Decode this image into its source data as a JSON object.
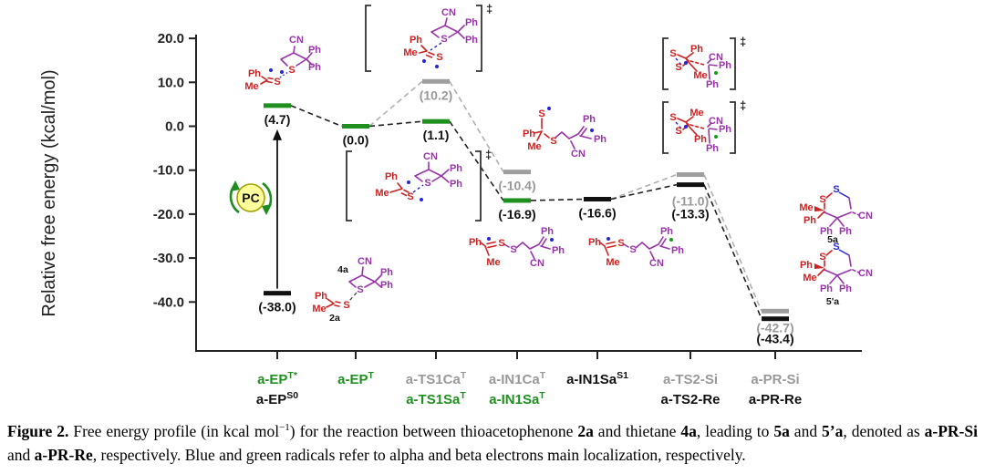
{
  "colors": {
    "green": "#1f8f1f",
    "gray": "#9e9e9e",
    "black": "#111111",
    "gray_text": "#999999",
    "line_gray": "#b0b0b0",
    "line_black": "#222222",
    "purple": "#9933aa",
    "red": "#cc2222",
    "blue": "#2424dd",
    "radical_green": "#0f9f0f",
    "pc_fill": "#ffff9c",
    "pc_ring": "#1e8c1e"
  },
  "chart_data": {
    "type": "energy-profile",
    "ylabel": "Relative free energy (kcal/mol)",
    "yunits": "kcal/mol",
    "ylim": [
      -47,
      22
    ],
    "yticks": [
      "20.0",
      "10.0",
      "0.0",
      "-10.0",
      "-20.0",
      "-30.0",
      "-40.0"
    ],
    "grid": false,
    "stages": [
      {
        "x": 304,
        "row1": {
          "text": "a-EP",
          "sup": "T*",
          "color": "green"
        },
        "row2": {
          "text": "a-EP",
          "sup": "S0",
          "color": "black"
        }
      },
      {
        "x": 390,
        "row1": {
          "text": "a-EP",
          "sup": "T",
          "color": "green"
        }
      },
      {
        "x": 478,
        "row1": {
          "text": "a-TS1Ca",
          "sup": "T",
          "color": "gray_text"
        },
        "row2": {
          "text": "a-TS1Sa",
          "sup": "T",
          "color": "green"
        }
      },
      {
        "x": 567,
        "row1": {
          "text": "a-IN1Ca",
          "sup": "T",
          "color": "gray_text"
        },
        "row2": {
          "text": "a-IN1Sa",
          "sup": "T",
          "color": "green"
        }
      },
      {
        "x": 655,
        "row1": {
          "text": "a-IN1Sa",
          "sup": "S1",
          "color": "black"
        }
      },
      {
        "x": 757,
        "row1": {
          "text": "a-TS2-Si",
          "sup": "",
          "color": "gray_text"
        },
        "row2": {
          "text": "a-TS2-Re",
          "sup": "",
          "color": "black"
        }
      },
      {
        "x": 850,
        "row1": {
          "text": "a-PR-Si",
          "sup": "",
          "color": "gray_text"
        },
        "row2": {
          "text": "a-PR-Re",
          "sup": "",
          "color": "black"
        }
      }
    ],
    "levels": [
      {
        "id": "EPTstar",
        "stage": 0,
        "value": 4.7,
        "color": "green",
        "label": "(4.7)",
        "label_color": "black"
      },
      {
        "id": "EPS0",
        "stage": 0,
        "value": -38.0,
        "color": "black",
        "label": "(-38.0)",
        "label_color": "black"
      },
      {
        "id": "EPT",
        "stage": 1,
        "value": 0.0,
        "color": "green",
        "label": "(0.0)",
        "label_color": "black"
      },
      {
        "id": "TS1Ca",
        "stage": 2,
        "value": 10.2,
        "color": "gray",
        "label": "(10.2)",
        "label_color": "gray_text"
      },
      {
        "id": "TS1Sa",
        "stage": 2,
        "value": 1.1,
        "color": "green",
        "label": "(1.1)",
        "label_color": "black"
      },
      {
        "id": "IN1Ca",
        "stage": 3,
        "value": -10.4,
        "color": "gray",
        "label": "(-10.4)",
        "label_color": "gray_text"
      },
      {
        "id": "IN1Sa",
        "stage": 3,
        "value": -16.9,
        "color": "green",
        "label": "(-16.9)",
        "label_color": "black"
      },
      {
        "id": "IN1SaS1",
        "stage": 4,
        "value": -16.6,
        "color": "black",
        "label": "(-16.6)",
        "label_color": "black"
      },
      {
        "id": "TS2Si",
        "stage": 5,
        "value": -11.0,
        "color": "gray",
        "label": "(-11.0)",
        "label_color": "gray_text",
        "label_dy": 34
      },
      {
        "id": "TS2Re",
        "stage": 5,
        "value": -13.3,
        "color": "black",
        "label": "(-13.3)",
        "label_color": "black",
        "label_dy": 37
      },
      {
        "id": "PRSi",
        "stage": 6,
        "value": -42.7,
        "color": "gray",
        "label": "(-42.7)",
        "label_color": "gray_text",
        "bar_dy": -3
      },
      {
        "id": "PRRe",
        "stage": 6,
        "value": -43.4,
        "color": "black",
        "label": "(-43.4)",
        "label_color": "black",
        "bar_dy": 2,
        "label_dy": 29
      }
    ],
    "connections": [
      [
        "EPTstar",
        "EPT",
        "black"
      ],
      [
        "EPT",
        "TS1Ca",
        "gray"
      ],
      [
        "EPT",
        "TS1Sa",
        "black"
      ],
      [
        "TS1Ca",
        "IN1Ca",
        "gray"
      ],
      [
        "TS1Sa",
        "IN1Sa",
        "black"
      ],
      [
        "IN1Sa",
        "IN1SaS1",
        "black"
      ],
      [
        "IN1SaS1",
        "TS2Si",
        "gray"
      ],
      [
        "IN1SaS1",
        "TS2Re",
        "black"
      ],
      [
        "TS2Si",
        "PRSi",
        "gray"
      ],
      [
        "TS2Re",
        "PRRe",
        "black"
      ]
    ],
    "excitation_arrow": {
      "stage": 0,
      "from": -38.0,
      "to": 4.7
    }
  },
  "pc": {
    "label": "PC"
  },
  "molecules": {
    "ts_symbol": "‡",
    "labels": {
      "ph": "Ph",
      "me": "Me",
      "s": "S",
      "cn": "CN"
    },
    "tags": {
      "m2a": "2a",
      "m4a": "4a",
      "p5a": "5a",
      "p5pa": "5'a"
    }
  },
  "caption": {
    "segments": [
      {
        "t": "Figure 2.",
        "b": 1
      },
      {
        "t": "  Free energy profile (in kcal mol",
        "b": 0
      },
      {
        "t": "−1",
        "sup": 1
      },
      {
        "t": ") for the reaction between thioacetophenone ",
        "b": 0
      },
      {
        "t": "2a",
        "b": 1
      },
      {
        "t": " and thietane ",
        "b": 0
      },
      {
        "t": "4a",
        "b": 1
      },
      {
        "t": ", leading to ",
        "b": 0
      },
      {
        "t": "5a",
        "b": 1
      },
      {
        "t": " and ",
        "b": 0
      },
      {
        "t": "5’a",
        "b": 1
      },
      {
        "t": ", denoted as ",
        "b": 0
      },
      {
        "t": "a-PR-Si",
        "b": 1
      },
      {
        "t": " and ",
        "b": 0
      },
      {
        "t": "a-PR-Re",
        "b": 1
      },
      {
        "t": ", respectively. Blue and green radicals refer to alpha and beta electrons main localization, respectively.",
        "b": 0
      }
    ]
  }
}
